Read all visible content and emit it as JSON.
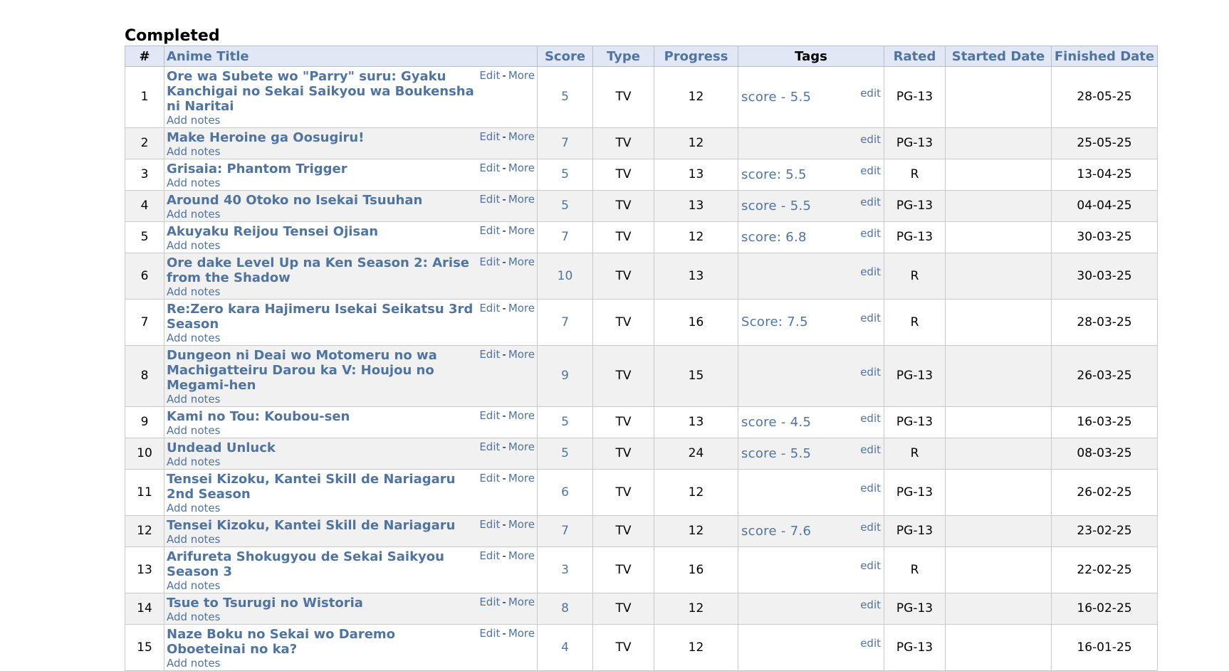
{
  "section": {
    "title": "Completed"
  },
  "columns": {
    "num": "#",
    "title": "Anime Title",
    "score": "Score",
    "type": "Type",
    "progress": "Progress",
    "tags": "Tags",
    "rated": "Rated",
    "started": "Started Date",
    "finished": "Finished Date"
  },
  "labels": {
    "edit": "Edit",
    "sep": "-",
    "more": "More",
    "add_notes": "Add notes",
    "tag_edit": "edit"
  },
  "rows": [
    {
      "num": "1",
      "title": "Ore wa Subete wo \"Parry\" suru: Gyaku Kanchigai no Sekai Saikyou wa Boukensha ni Naritai",
      "score": "5",
      "type": "TV",
      "progress": "12",
      "tags": "score - 5.5",
      "rated": "PG-13",
      "started": "",
      "finished": "28-05-25"
    },
    {
      "num": "2",
      "title": "Make Heroine ga Oosugiru!",
      "score": "7",
      "type": "TV",
      "progress": "12",
      "tags": "",
      "rated": "PG-13",
      "started": "",
      "finished": "25-05-25"
    },
    {
      "num": "3",
      "title": "Grisaia: Phantom Trigger",
      "score": "5",
      "type": "TV",
      "progress": "13",
      "tags": "score: 5.5",
      "rated": "R",
      "started": "",
      "finished": "13-04-25"
    },
    {
      "num": "4",
      "title": "Around 40 Otoko no Isekai Tsuuhan",
      "score": "5",
      "type": "TV",
      "progress": "13",
      "tags": "score - 5.5",
      "rated": "PG-13",
      "started": "",
      "finished": "04-04-25"
    },
    {
      "num": "5",
      "title": "Akuyaku Reijou Tensei Ojisan",
      "score": "7",
      "type": "TV",
      "progress": "12",
      "tags": "score: 6.8",
      "rated": "PG-13",
      "started": "",
      "finished": "30-03-25"
    },
    {
      "num": "6",
      "title": "Ore dake Level Up na Ken Season 2: Arise from the Shadow",
      "score": "10",
      "type": "TV",
      "progress": "13",
      "tags": "",
      "rated": "R",
      "started": "",
      "finished": "30-03-25"
    },
    {
      "num": "7",
      "title": "Re:Zero kara Hajimeru Isekai Seikatsu 3rd Season",
      "score": "7",
      "type": "TV",
      "progress": "16",
      "tags": "Score: 7.5",
      "rated": "R",
      "started": "",
      "finished": "28-03-25"
    },
    {
      "num": "8",
      "title": "Dungeon ni Deai wo Motomeru no wa Machigatteiru Darou ka V: Houjou no Megami-hen",
      "score": "9",
      "type": "TV",
      "progress": "15",
      "tags": "",
      "rated": "PG-13",
      "started": "",
      "finished": "26-03-25"
    },
    {
      "num": "9",
      "title": "Kami no Tou: Koubou-sen",
      "score": "5",
      "type": "TV",
      "progress": "13",
      "tags": "score - 4.5",
      "rated": "PG-13",
      "started": "",
      "finished": "16-03-25"
    },
    {
      "num": "10",
      "title": "Undead Unluck",
      "score": "5",
      "type": "TV",
      "progress": "24",
      "tags": "score - 5.5",
      "rated": "R",
      "started": "",
      "finished": "08-03-25"
    },
    {
      "num": "11",
      "title": "Tensei Kizoku, Kantei Skill de Nariagaru 2nd Season",
      "score": "6",
      "type": "TV",
      "progress": "12",
      "tags": "",
      "rated": "PG-13",
      "started": "",
      "finished": "26-02-25"
    },
    {
      "num": "12",
      "title": "Tensei Kizoku, Kantei Skill de Nariagaru",
      "score": "7",
      "type": "TV",
      "progress": "12",
      "tags": "score - 7.6",
      "rated": "PG-13",
      "started": "",
      "finished": "23-02-25"
    },
    {
      "num": "13",
      "title": "Arifureta Shokugyou de Sekai Saikyou Season 3",
      "score": "3",
      "type": "TV",
      "progress": "16",
      "tags": "",
      "rated": "R",
      "started": "",
      "finished": "22-02-25"
    },
    {
      "num": "14",
      "title": "Tsue to Tsurugi no Wistoria",
      "score": "8",
      "type": "TV",
      "progress": "12",
      "tags": "",
      "rated": "PG-13",
      "started": "",
      "finished": "16-02-25"
    },
    {
      "num": "15",
      "title": "Naze Boku no Sekai wo Daremo Oboeteinai no ka?",
      "score": "4",
      "type": "TV",
      "progress": "12",
      "tags": "",
      "rated": "PG-13",
      "started": "",
      "finished": "16-01-25"
    }
  ]
}
